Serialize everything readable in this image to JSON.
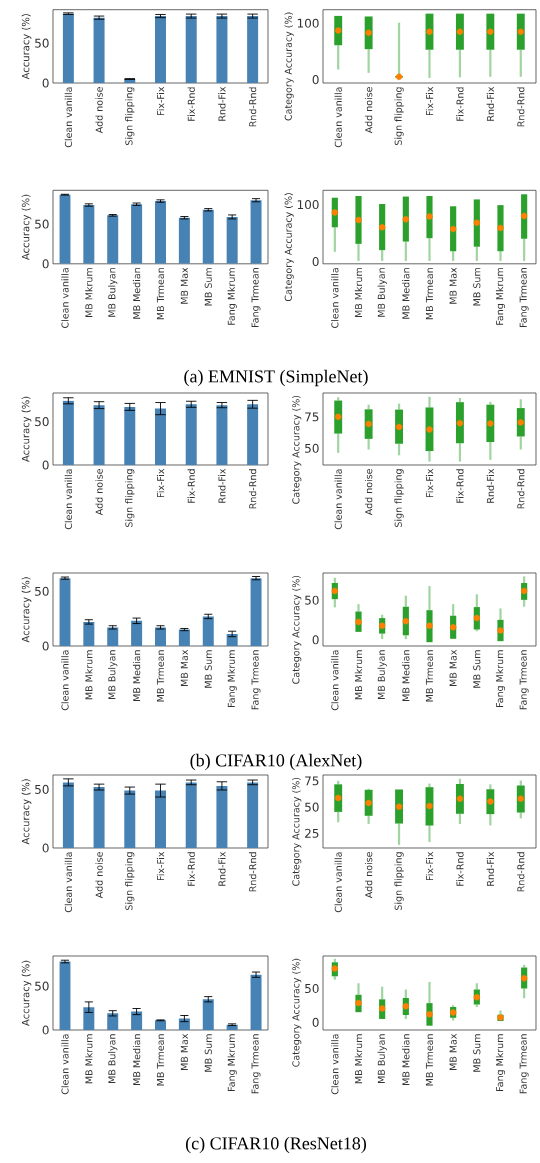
{
  "chart_data": [
    {
      "type": "bar",
      "ylabel": "Accuracy (%)",
      "categories": [
        "Clean vanilla",
        "Add noise",
        "Sign flipping",
        "Fix-Fix",
        "Fix-Rnd",
        "Rnd-Fix",
        "Rnd-Rnd"
      ],
      "values": [
        87,
        82,
        5,
        84,
        84,
        84,
        84
      ],
      "errors": [
        1,
        2,
        0.5,
        2,
        2.5,
        2.5,
        2.5
      ],
      "color": "#4682b4",
      "ylim": [
        0,
        92
      ],
      "yticks": [
        0,
        50
      ]
    },
    {
      "type": "box",
      "ylabel": "Category Accuracy (%)",
      "categories": [
        "Clean vanilla",
        "Add noise",
        "Sign flipping",
        "Fix-Fix",
        "Fix-Rnd",
        "Rnd-Fix",
        "Rnd-Rnd"
      ],
      "color": "#2ca02c",
      "ylim": [
        -6,
        124
      ],
      "yticks": [
        0,
        100
      ],
      "boxes": [
        {
          "low": 18,
          "q1": 61,
          "median": 87,
          "q3": 113,
          "high": 113,
          "mean": 87
        },
        {
          "low": 12,
          "q1": 54,
          "median": 83,
          "q3": 112,
          "high": 112,
          "mean": 83
        },
        {
          "low": 0,
          "q1": 4,
          "median": 5,
          "q3": 6,
          "high": 101,
          "mean": 5
        },
        {
          "low": 3,
          "q1": 53,
          "median": 85,
          "q3": 117,
          "high": 117,
          "mean": 85
        },
        {
          "low": 4,
          "q1": 53,
          "median": 85,
          "q3": 117,
          "high": 117,
          "mean": 85
        },
        {
          "low": 5,
          "q1": 53,
          "median": 85,
          "q3": 117,
          "high": 117,
          "mean": 85
        },
        {
          "low": 5,
          "q1": 53,
          "median": 85,
          "q3": 117,
          "high": 117,
          "mean": 85
        }
      ]
    },
    {
      "type": "bar",
      "ylabel": "Accuracy (%)",
      "categories": [
        "Clean vanilla",
        "MB Mkrum",
        "MB Bulyan",
        "MB Median",
        "MB Trmean",
        "MB Max",
        "MB Sum",
        "Fang Mkrum",
        "Fang Trmean"
      ],
      "values": [
        87,
        74,
        61,
        75,
        79,
        58,
        68,
        59,
        80
      ],
      "errors": [
        0.5,
        1.5,
        1,
        1.5,
        1.5,
        1.5,
        1.5,
        2.5,
        2
      ],
      "color": "#4682b4",
      "ylim": [
        0,
        92.5
      ],
      "yticks": [
        0,
        50
      ]
    },
    {
      "type": "box",
      "ylabel": "Category Accuracy (%)",
      "categories": [
        "Clean vanilla",
        "MB Mkrum",
        "MB Bulyan",
        "MB Median",
        "MB Trmean",
        "MB Max",
        "MB Sum",
        "Fang Mkrum",
        "Fang Trmean"
      ],
      "color": "#2ca02c",
      "ylim": [
        -4,
        125
      ],
      "yticks": [
        0,
        100
      ],
      "boxes": [
        {
          "low": 17,
          "q1": 60,
          "median": 86,
          "q3": 112,
          "high": 112,
          "mean": 86
        },
        {
          "low": 1,
          "q1": 31,
          "median": 73,
          "q3": 115,
          "high": 115,
          "mean": 73
        },
        {
          "low": 1,
          "q1": 20,
          "median": 60,
          "q3": 101,
          "high": 101,
          "mean": 60
        },
        {
          "low": 1,
          "q1": 35,
          "median": 74,
          "q3": 114,
          "high": 114,
          "mean": 74
        },
        {
          "low": 1,
          "q1": 41,
          "median": 79,
          "q3": 115,
          "high": 115,
          "mean": 79
        },
        {
          "low": 1,
          "q1": 18,
          "median": 57,
          "q3": 97,
          "high": 97,
          "mean": 57
        },
        {
          "low": 1,
          "q1": 26,
          "median": 68,
          "q3": 109,
          "high": 109,
          "mean": 68
        },
        {
          "low": 1,
          "q1": 18,
          "median": 59,
          "q3": 99,
          "high": 99,
          "mean": 59
        },
        {
          "low": 1,
          "q1": 40,
          "median": 80,
          "q3": 118,
          "high": 118,
          "mean": 80
        }
      ]
    },
    {
      "type": "other",
      "annotations": [
        "(a) EMNIST (SimpleNet)"
      ]
    },
    {
      "type": "bar",
      "ylabel": "Accuracy (%)",
      "categories": [
        "Clean vanilla",
        "Add noise",
        "Sign flipping",
        "Fix-Fix",
        "Fix-Rnd",
        "Rnd-Fix",
        "Rnd-Rnd"
      ],
      "values": [
        74,
        69,
        67,
        65,
        70,
        69,
        70
      ],
      "errors": [
        3.5,
        4,
        4,
        7,
        3.5,
        3,
        4.5
      ],
      "color": "#4682b4",
      "ylim": [
        0,
        83
      ],
      "yticks": [
        0,
        50
      ]
    },
    {
      "type": "box",
      "ylabel": "Category Accuracy (%)",
      "categories": [
        "Clean vanilla",
        "Add noise",
        "Sign flipping",
        "Fix-Fix",
        "Fix-Rnd",
        "Rnd-Fix",
        "Rnd-Rnd"
      ],
      "color": "#2ca02c",
      "ylim": [
        36.7,
        94
      ],
      "yticks": [
        50,
        75
      ],
      "boxes": [
        {
          "low": 46.4,
          "q1": 61.7,
          "median": 75,
          "q3": 88,
          "high": 90.6,
          "mean": 75
        },
        {
          "low": 49,
          "q1": 57.5,
          "median": 69.4,
          "q3": 81,
          "high": 84.7,
          "mean": 69.4
        },
        {
          "low": 44.4,
          "q1": 53.6,
          "median": 67,
          "q3": 80.8,
          "high": 85.6,
          "mean": 67
        },
        {
          "low": 39.4,
          "q1": 47.8,
          "median": 65,
          "q3": 82.5,
          "high": 91,
          "mean": 65
        },
        {
          "low": 39.4,
          "q1": 54,
          "median": 70,
          "q3": 86.7,
          "high": 90,
          "mean": 70
        },
        {
          "low": 40.8,
          "q1": 55,
          "median": 69.7,
          "q3": 84.7,
          "high": 87,
          "mean": 69.7
        },
        {
          "low": 49,
          "q1": 59.4,
          "median": 70.6,
          "q3": 82,
          "high": 89,
          "mean": 70.6
        }
      ]
    },
    {
      "type": "bar",
      "ylabel": "Accuracy (%)",
      "categories": [
        "Clean vanilla",
        "MB Mkrum",
        "MB Bulyan",
        "MB Median",
        "MB Trmean",
        "MB Max",
        "MB Sum",
        "Fang Mkrum",
        "Fang Trmean"
      ],
      "values": [
        62,
        22,
        17,
        23,
        17,
        15,
        27,
        11,
        62
      ],
      "errors": [
        1,
        2,
        1.5,
        2.5,
        1.5,
        1,
        2,
        2.5,
        1.5
      ],
      "color": "#4682b4",
      "ylim": [
        0,
        66.7
      ],
      "yticks": [
        0,
        50
      ]
    },
    {
      "type": "box",
      "ylabel": "Category Accuracy (%)",
      "categories": [
        "Clean vanilla",
        "MB Mkrum",
        "MB Bulyan",
        "MB Median",
        "MB Trmean",
        "MB Max",
        "MB Sum",
        "Fang Mkrum",
        "Fang Trmean"
      ],
      "color": "#2ca02c",
      "ylim": [
        -7.8,
        84.3
      ],
      "yticks": [
        0,
        50
      ],
      "boxes": [
        {
          "low": 40.9,
          "q1": 51.3,
          "median": 61.7,
          "q3": 71.7,
          "high": 78.3,
          "mean": 61.7
        },
        {
          "low": 10,
          "q1": 10,
          "median": 22.6,
          "q3": 35.7,
          "high": 45,
          "mean": 22.6
        },
        {
          "low": 0.9,
          "q1": 7.8,
          "median": 17.8,
          "q3": 27.4,
          "high": 31.7,
          "mean": 17.8
        },
        {
          "low": 0.9,
          "q1": 5.7,
          "median": 23.5,
          "q3": 41.7,
          "high": 55.7,
          "mean": 23.5
        },
        {
          "low": -3,
          "q1": -3,
          "median": 17.8,
          "q3": 37.4,
          "high": 67.8,
          "mean": 17.8
        },
        {
          "low": 0.9,
          "q1": 1.3,
          "median": 15.7,
          "q3": 30.4,
          "high": 45,
          "mean": 15.7
        },
        {
          "low": 10.9,
          "q1": 13,
          "median": 27.4,
          "q3": 41.3,
          "high": 57.4,
          "mean": 27.4
        },
        {
          "low": -1.7,
          "q1": -1.7,
          "median": 11.7,
          "q3": 25.2,
          "high": 39.6,
          "mean": 11.7
        },
        {
          "low": 41.7,
          "q1": 50.4,
          "median": 61.7,
          "q3": 71.7,
          "high": 80,
          "mean": 61.7
        }
      ]
    },
    {
      "type": "other",
      "annotations": [
        "(b) CIFAR10 (AlexNet)"
      ]
    },
    {
      "type": "bar",
      "ylabel": "Accuracy (%)",
      "categories": [
        "Clean vanilla",
        "Add noise",
        "Sign flipping",
        "Fix-Fix",
        "Fix-Rnd",
        "Rnd-Fix",
        "Rnd-Rnd"
      ],
      "values": [
        56,
        52,
        49,
        49,
        56,
        53,
        56
      ],
      "errors": [
        3,
        2.5,
        3,
        5.5,
        2,
        3.5,
        2
      ],
      "color": "#4682b4",
      "ylim": [
        0,
        62.3
      ],
      "yticks": [
        0,
        50
      ]
    },
    {
      "type": "box",
      "ylabel": "Category Accuracy (%)",
      "categories": [
        "Clean vanilla",
        "Add noise",
        "Sign flipping",
        "Fix-Fix",
        "Fix-Rnd",
        "Rnd-Fix",
        "Rnd-Rnd"
      ],
      "color": "#2ca02c",
      "ylim": [
        11,
        80.6
      ],
      "yticks": [
        25,
        50,
        75
      ],
      "boxes": [
        {
          "low": 35.5,
          "q1": 45.4,
          "median": 58.7,
          "q3": 71.7,
          "high": 75,
          "mean": 58.7
        },
        {
          "low": 34,
          "q1": 41.7,
          "median": 54,
          "q3": 66.5,
          "high": 67.5,
          "mean": 54
        },
        {
          "low": 14,
          "q1": 34.3,
          "median": 50.4,
          "q3": 66.8,
          "high": 66.8,
          "mean": 50.4
        },
        {
          "low": 16.7,
          "q1": 32.4,
          "median": 51,
          "q3": 69,
          "high": 72.4,
          "mean": 51
        },
        {
          "low": 33.8,
          "q1": 43.6,
          "median": 58,
          "q3": 72,
          "high": 77,
          "mean": 58
        },
        {
          "low": 32.5,
          "q1": 43.3,
          "median": 55.4,
          "q3": 67,
          "high": 71.7,
          "mean": 55.4
        },
        {
          "low": 39.2,
          "q1": 44.8,
          "median": 58,
          "q3": 70.6,
          "high": 75.3,
          "mean": 58
        }
      ]
    },
    {
      "type": "bar",
      "ylabel": "Accuracy (%)",
      "categories": [
        "Clean vanilla",
        "MB Mkrum",
        "MB Bulyan",
        "MB Median",
        "MB Trmean",
        "MB Max",
        "MB Sum",
        "Fang Mkrum",
        "Fang Trmean"
      ],
      "values": [
        78,
        26,
        19,
        21,
        11,
        13,
        35,
        6,
        63
      ],
      "errors": [
        1.5,
        6,
        3,
        3.5,
        0.5,
        3.5,
        3,
        1,
        3
      ],
      "color": "#4682b4",
      "ylim": [
        0,
        84.3
      ],
      "yticks": [
        0,
        50
      ]
    },
    {
      "type": "box",
      "ylabel": "Category Accuracy (%)",
      "categories": [
        "Clean vanilla",
        "MB Mkrum",
        "MB Bulyan",
        "MB Median",
        "MB Trmean",
        "MB Max",
        "MB Sum",
        "Fang Mkrum",
        "Fang Trmean"
      ],
      "color": "#2ca02c",
      "ylim": [
        -11.3,
        98
      ],
      "yticks": [
        0,
        50
      ],
      "boxes": [
        {
          "low": 62.9,
          "q1": 68,
          "median": 79.4,
          "q3": 88.7,
          "high": 93.8,
          "mean": 79.4
        },
        {
          "low": 15,
          "q1": 15,
          "median": 28.4,
          "q3": 40.7,
          "high": 57.7,
          "mean": 28.4
        },
        {
          "low": 5,
          "q1": 5,
          "median": 20.6,
          "q3": 34,
          "high": 52.6,
          "mean": 20.6
        },
        {
          "low": 5,
          "q1": 10.8,
          "median": 23.7,
          "q3": 36,
          "high": 48.5,
          "mean": 23.7
        },
        {
          "low": -5,
          "q1": -5,
          "median": 11.9,
          "q3": 28.4,
          "high": 59.8,
          "mean": 11.9
        },
        {
          "low": 2.6,
          "q1": 6.7,
          "median": 14.4,
          "q3": 22.7,
          "high": 25.3,
          "mean": 14.4
        },
        {
          "low": 22.7,
          "q1": 26.3,
          "median": 37.1,
          "q3": 48.5,
          "high": 57.7,
          "mean": 37.1
        },
        {
          "low": 2,
          "q1": 2,
          "median": 7.2,
          "q3": 11.3,
          "high": 17.5,
          "mean": 7.2
        },
        {
          "low": 35.6,
          "q1": 50,
          "median": 65,
          "q3": 81,
          "high": 85,
          "mean": 65
        }
      ]
    },
    {
      "type": "other",
      "annotations": [
        "(c) CIFAR10 (ResNet18)"
      ]
    }
  ]
}
